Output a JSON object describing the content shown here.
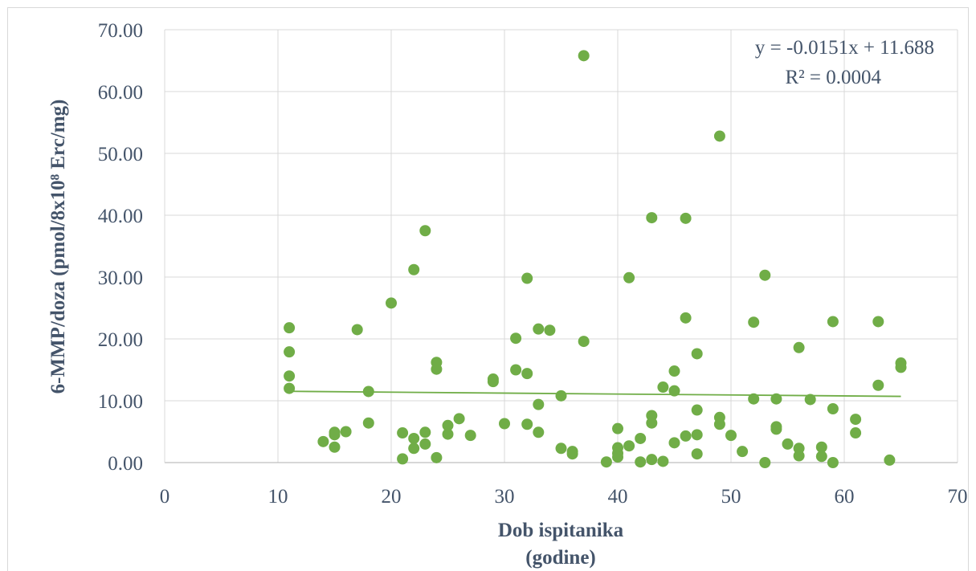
{
  "chart_data": {
    "type": "scatter",
    "title": "",
    "xlabel": "Dob ispitanika",
    "xlabel_line2": "(godine)",
    "ylabel": "6-MMP/doza (pmol/8x10⁸ Erc/mg)",
    "xlim": [
      0,
      70
    ],
    "ylim": [
      0,
      70
    ],
    "x_ticks": [
      0,
      10,
      20,
      30,
      40,
      50,
      60,
      70
    ],
    "x_tick_labels": [
      "0",
      "10",
      "20",
      "30",
      "40",
      "50",
      "60",
      "70"
    ],
    "y_ticks": [
      0,
      10,
      20,
      30,
      40,
      50,
      60,
      70
    ],
    "y_tick_labels": [
      "0.00",
      "10.00",
      "20.00",
      "30.00",
      "40.00",
      "50.00",
      "60.00",
      "70.00"
    ],
    "grid": "vertical and horizontal major gridlines",
    "legend": "none",
    "marker_color": "#70ad47",
    "trendline": {
      "type": "linear",
      "slope": -0.0151,
      "intercept": 11.688,
      "x_range": [
        11,
        65
      ],
      "color": "#70ad47",
      "equation_label": "y = -0.0151x + 11.688",
      "r2_label": "R² = 0.0004"
    },
    "points": [
      [
        11,
        21.8
      ],
      [
        11,
        17.9
      ],
      [
        11,
        14.0
      ],
      [
        11,
        12.0
      ],
      [
        14,
        3.4
      ],
      [
        15,
        4.9
      ],
      [
        15,
        4.5
      ],
      [
        15,
        2.5
      ],
      [
        16,
        5.0
      ],
      [
        17,
        21.5
      ],
      [
        18,
        11.5
      ],
      [
        18,
        6.4
      ],
      [
        20,
        25.8
      ],
      [
        21,
        4.8
      ],
      [
        21,
        0.6
      ],
      [
        22,
        31.2
      ],
      [
        22,
        3.9
      ],
      [
        22,
        2.3
      ],
      [
        23,
        37.5
      ],
      [
        23,
        4.9
      ],
      [
        23,
        3.0
      ],
      [
        24,
        16.2
      ],
      [
        24,
        15.1
      ],
      [
        24,
        0.8
      ],
      [
        25,
        6.0
      ],
      [
        25,
        4.6
      ],
      [
        26,
        7.1
      ],
      [
        27,
        4.4
      ],
      [
        29,
        13.5
      ],
      [
        29,
        13.1
      ],
      [
        30,
        6.3
      ],
      [
        31,
        20.1
      ],
      [
        31,
        15.0
      ],
      [
        32,
        29.8
      ],
      [
        32,
        14.4
      ],
      [
        32,
        6.2
      ],
      [
        33,
        21.6
      ],
      [
        33,
        9.4
      ],
      [
        33,
        4.9
      ],
      [
        34,
        21.4
      ],
      [
        35,
        10.8
      ],
      [
        35,
        2.3
      ],
      [
        36,
        1.8
      ],
      [
        36,
        1.4
      ],
      [
        37,
        65.8
      ],
      [
        37,
        19.6
      ],
      [
        39,
        0.1
      ],
      [
        40,
        5.5
      ],
      [
        40,
        2.4
      ],
      [
        40,
        1.5
      ],
      [
        40,
        0.9
      ],
      [
        41,
        29.9
      ],
      [
        41,
        2.7
      ],
      [
        42,
        3.9
      ],
      [
        42,
        0.1
      ],
      [
        43,
        39.6
      ],
      [
        43,
        7.6
      ],
      [
        43,
        6.4
      ],
      [
        43,
        0.5
      ],
      [
        44,
        12.2
      ],
      [
        44,
        0.2
      ],
      [
        45,
        14.8
      ],
      [
        45,
        11.6
      ],
      [
        45,
        3.2
      ],
      [
        46,
        39.5
      ],
      [
        46,
        23.4
      ],
      [
        46,
        4.3
      ],
      [
        47,
        17.6
      ],
      [
        47,
        8.5
      ],
      [
        47,
        4.5
      ],
      [
        47,
        1.4
      ],
      [
        49,
        52.8
      ],
      [
        49,
        7.3
      ],
      [
        49,
        6.2
      ],
      [
        50,
        4.4
      ],
      [
        51,
        1.8
      ],
      [
        52,
        22.7
      ],
      [
        52,
        10.3
      ],
      [
        53,
        30.3
      ],
      [
        53,
        0.0
      ],
      [
        54,
        10.3
      ],
      [
        54,
        5.8
      ],
      [
        54,
        5.4
      ],
      [
        55,
        3.0
      ],
      [
        56,
        18.6
      ],
      [
        56,
        2.3
      ],
      [
        56,
        1.1
      ],
      [
        57,
        10.2
      ],
      [
        58,
        2.5
      ],
      [
        58,
        1.0
      ],
      [
        59,
        22.8
      ],
      [
        59,
        8.7
      ],
      [
        59,
        0.0
      ],
      [
        61,
        7.0
      ],
      [
        61,
        4.8
      ],
      [
        63,
        22.8
      ],
      [
        63,
        12.5
      ],
      [
        64,
        0.4
      ],
      [
        65,
        16.1
      ],
      [
        65,
        15.4
      ]
    ]
  }
}
